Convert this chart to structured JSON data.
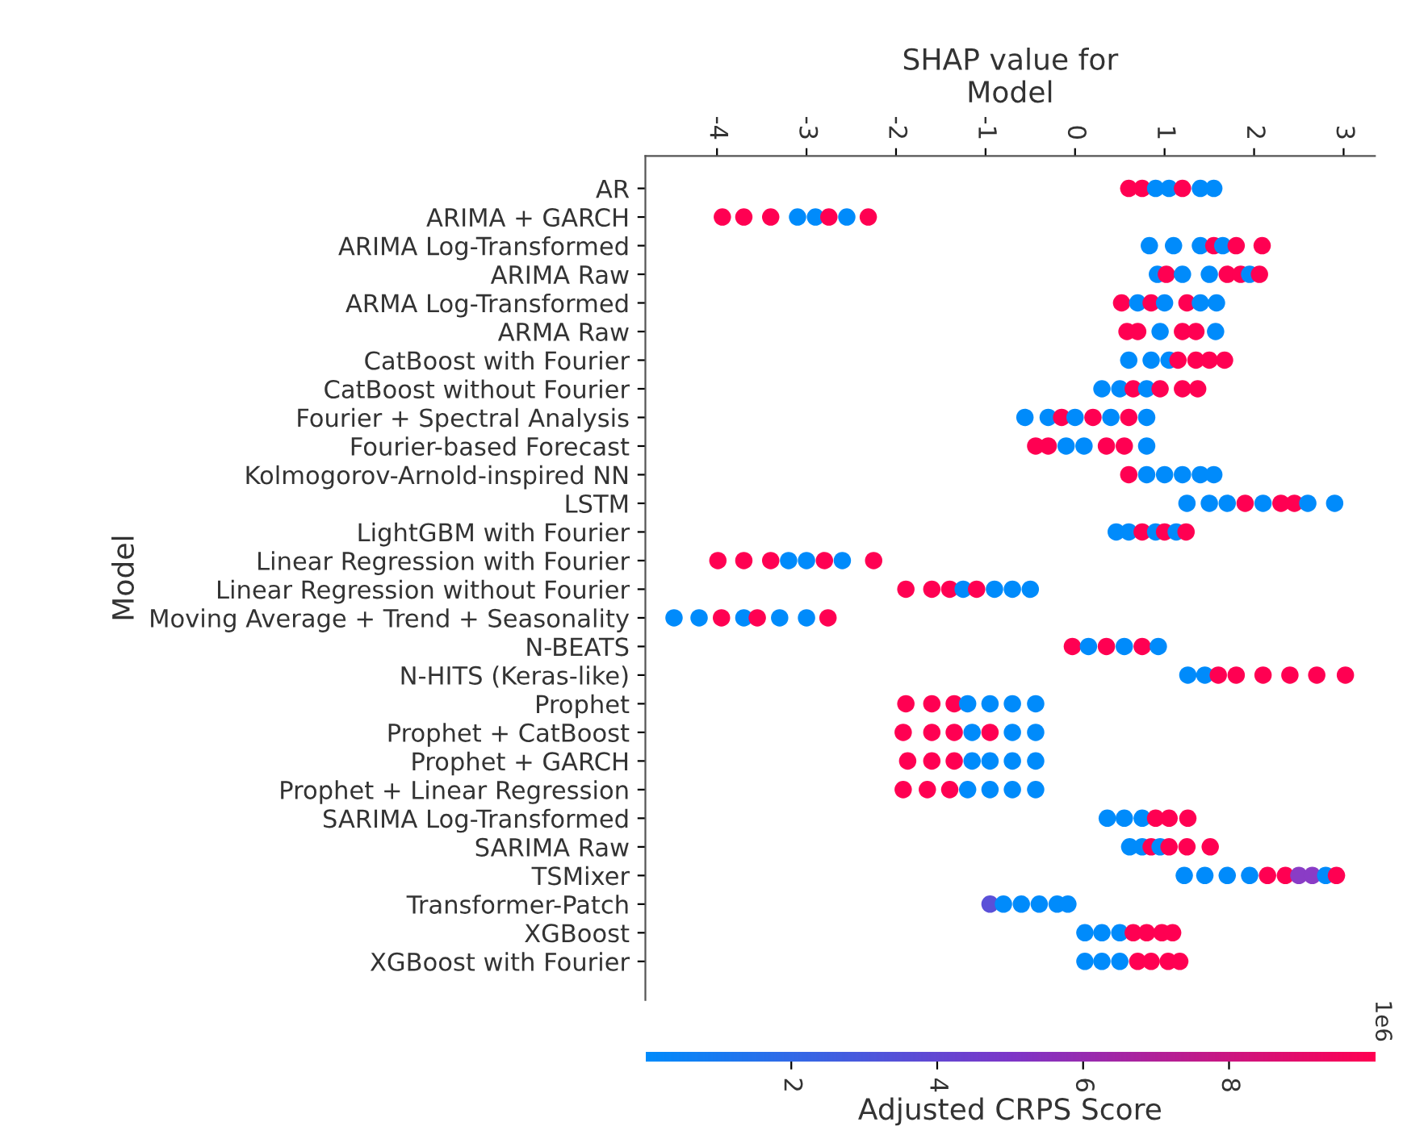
{
  "chart_data": {
    "type": "scatter",
    "orientation": "horizontal",
    "xlabel": "SHAP value for\nModel",
    "ylabel": "Model",
    "clabel": "Adjusted CRPS Score",
    "annotations": [
      "1e6"
    ],
    "categories": [
      "AR",
      "ARIMA + GARCH",
      "ARIMA Log-Transformed",
      "ARIMA Raw",
      "ARMA Log-Transformed",
      "ARMA Raw",
      "CatBoost with Fourier",
      "CatBoost without Fourier",
      "Fourier + Spectral Analysis",
      "Fourier-based Forecast",
      "Kolmogorov-Arnold-inspired NN",
      "LSTM",
      "LightGBM with Fourier",
      "Linear Regression with Fourier",
      "Linear Regression without Fourier",
      "Moving Average + Trend + Seasonality",
      "N-BEATS",
      "N-HITS (Keras-like)",
      "Prophet",
      "Prophet + CatBoost",
      "Prophet + GARCH",
      "Prophet + Linear Regression",
      "SARIMA Log-Transformed",
      "SARIMA Raw",
      "TSMixer",
      "Transformer-Patch",
      "XGBoost",
      "XGBoost with Fourier"
    ],
    "xlim": [
      -4.8,
      3.35
    ],
    "xticks": [
      -4,
      -3,
      -2,
      -1,
      0,
      1,
      2,
      3
    ],
    "clim": [
      0,
      10
    ],
    "cticks": [
      2,
      4,
      6,
      8
    ],
    "marker": "circle",
    "grid": false,
    "legend": false,
    "series": [
      {
        "x": [
          "AR",
          "AR",
          "AR",
          "AR",
          "AR",
          "AR",
          "AR"
        ],
        "values": [
          0.6,
          0.75,
          0.9,
          1.05,
          1.2,
          1.4,
          1.55
        ],
        "colors": [
          "#ff0052",
          "#ff0052",
          "#008bfb",
          "#008bfb",
          "#ff0052",
          "#008bfb",
          "#008bfb"
        ]
      },
      {
        "x": [
          "ARIMA + GARCH",
          "ARIMA + GARCH",
          "ARIMA + GARCH",
          "ARIMA + GARCH",
          "ARIMA + GARCH",
          "ARIMA + GARCH",
          "ARIMA + GARCH",
          "ARIMA + GARCH"
        ],
        "values": [
          -3.94,
          -3.7,
          -3.4,
          -3.1,
          -2.9,
          -2.75,
          -2.55,
          -2.31
        ],
        "colors": [
          "#ff0052",
          "#ff0052",
          "#ff0052",
          "#008bfb",
          "#008bfb",
          "#ff0052",
          "#008bfb",
          "#ff0052"
        ]
      },
      {
        "x": [
          "ARIMA Log-Transformed",
          "ARIMA Log-Transformed",
          "ARIMA Log-Transformed",
          "ARIMA Log-Transformed",
          "ARIMA Log-Transformed",
          "ARIMA Log-Transformed",
          "ARIMA Log-Transformed"
        ],
        "values": [
          0.83,
          1.1,
          1.4,
          1.55,
          1.65,
          1.8,
          2.09
        ],
        "colors": [
          "#008bfb",
          "#008bfb",
          "#008bfb",
          "#ff0052",
          "#008bfb",
          "#ff0052",
          "#ff0052"
        ]
      },
      {
        "x": [
          "ARIMA Raw",
          "ARIMA Raw",
          "ARIMA Raw",
          "ARIMA Raw",
          "ARIMA Raw",
          "ARIMA Raw",
          "ARIMA Raw",
          "ARIMA Raw"
        ],
        "values": [
          0.92,
          1.02,
          1.2,
          1.5,
          1.7,
          1.85,
          1.95,
          2.06
        ],
        "colors": [
          "#008bfb",
          "#ff0052",
          "#008bfb",
          "#008bfb",
          "#ff0052",
          "#ff0052",
          "#008bfb",
          "#ff0052"
        ]
      },
      {
        "x": [
          "ARMA Log-Transformed",
          "ARMA Log-Transformed",
          "ARMA Log-Transformed",
          "ARMA Log-Transformed",
          "ARMA Log-Transformed",
          "ARMA Log-Transformed",
          "ARMA Log-Transformed"
        ],
        "values": [
          0.52,
          0.7,
          0.85,
          1.0,
          1.25,
          1.4,
          1.58
        ],
        "colors": [
          "#ff0052",
          "#008bfb",
          "#ff0052",
          "#008bfb",
          "#ff0052",
          "#008bfb",
          "#008bfb"
        ]
      },
      {
        "x": [
          "ARMA Raw",
          "ARMA Raw",
          "ARMA Raw",
          "ARMA Raw",
          "ARMA Raw",
          "ARMA Raw"
        ],
        "values": [
          0.58,
          0.7,
          0.95,
          1.2,
          1.35,
          1.57
        ],
        "colors": [
          "#ff0052",
          "#ff0052",
          "#008bfb",
          "#ff0052",
          "#ff0052",
          "#008bfb"
        ]
      },
      {
        "x": [
          "CatBoost with Fourier",
          "CatBoost with Fourier",
          "CatBoost with Fourier",
          "CatBoost with Fourier",
          "CatBoost with Fourier",
          "CatBoost with Fourier",
          "CatBoost with Fourier"
        ],
        "values": [
          0.6,
          0.85,
          1.05,
          1.15,
          1.35,
          1.5,
          1.67
        ],
        "colors": [
          "#008bfb",
          "#008bfb",
          "#008bfb",
          "#ff0052",
          "#ff0052",
          "#ff0052",
          "#ff0052"
        ]
      },
      {
        "x": [
          "CatBoost without Fourier",
          "CatBoost without Fourier",
          "CatBoost without Fourier",
          "CatBoost without Fourier",
          "CatBoost without Fourier",
          "CatBoost without Fourier",
          "CatBoost without Fourier"
        ],
        "values": [
          0.3,
          0.5,
          0.65,
          0.8,
          0.95,
          1.2,
          1.37
        ],
        "colors": [
          "#008bfb",
          "#008bfb",
          "#ff0052",
          "#008bfb",
          "#ff0052",
          "#ff0052",
          "#ff0052"
        ]
      },
      {
        "x": [
          "Fourier + Spectral Analysis",
          "Fourier + Spectral Analysis",
          "Fourier + Spectral Analysis",
          "Fourier + Spectral Analysis",
          "Fourier + Spectral Analysis",
          "Fourier + Spectral Analysis",
          "Fourier + Spectral Analysis",
          "Fourier + Spectral Analysis"
        ],
        "values": [
          -0.56,
          -0.3,
          -0.15,
          0.0,
          0.2,
          0.4,
          0.6,
          0.8
        ],
        "colors": [
          "#008bfb",
          "#008bfb",
          "#ff0052",
          "#008bfb",
          "#ff0052",
          "#008bfb",
          "#ff0052",
          "#008bfb"
        ]
      },
      {
        "x": [
          "Fourier-based Forecast",
          "Fourier-based Forecast",
          "Fourier-based Forecast",
          "Fourier-based Forecast",
          "Fourier-based Forecast",
          "Fourier-based Forecast",
          "Fourier-based Forecast"
        ],
        "values": [
          -0.44,
          -0.3,
          -0.1,
          0.1,
          0.35,
          0.55,
          0.8
        ],
        "colors": [
          "#ff0052",
          "#ff0052",
          "#008bfb",
          "#008bfb",
          "#ff0052",
          "#ff0052",
          "#008bfb"
        ]
      },
      {
        "x": [
          "Kolmogorov-Arnold-inspired NN",
          "Kolmogorov-Arnold-inspired NN",
          "Kolmogorov-Arnold-inspired NN",
          "Kolmogorov-Arnold-inspired NN",
          "Kolmogorov-Arnold-inspired NN",
          "Kolmogorov-Arnold-inspired NN"
        ],
        "values": [
          0.6,
          0.8,
          1.0,
          1.2,
          1.4,
          1.55
        ],
        "colors": [
          "#ff0052",
          "#008bfb",
          "#008bfb",
          "#008bfb",
          "#008bfb",
          "#008bfb"
        ]
      },
      {
        "x": [
          "LSTM",
          "LSTM",
          "LSTM",
          "LSTM",
          "LSTM",
          "LSTM",
          "LSTM",
          "LSTM",
          "LSTM"
        ],
        "values": [
          1.25,
          1.5,
          1.7,
          1.9,
          2.1,
          2.3,
          2.45,
          2.6,
          2.9
        ],
        "colors": [
          "#008bfb",
          "#008bfb",
          "#008bfb",
          "#ff0052",
          "#008bfb",
          "#ff0052",
          "#ff0052",
          "#008bfb",
          "#008bfb"
        ]
      },
      {
        "x": [
          "LightGBM with Fourier",
          "LightGBM with Fourier",
          "LightGBM with Fourier",
          "LightGBM with Fourier",
          "LightGBM with Fourier",
          "LightGBM with Fourier",
          "LightGBM with Fourier"
        ],
        "values": [
          0.46,
          0.6,
          0.75,
          0.9,
          1.0,
          1.13,
          1.24
        ],
        "colors": [
          "#008bfb",
          "#008bfb",
          "#ff0052",
          "#008bfb",
          "#ff0052",
          "#008bfb",
          "#ff0052"
        ]
      },
      {
        "x": [
          "Linear Regression with Fourier",
          "Linear Regression with Fourier",
          "Linear Regression with Fourier",
          "Linear Regression with Fourier",
          "Linear Regression with Fourier",
          "Linear Regression with Fourier",
          "Linear Regression with Fourier",
          "Linear Regression with Fourier"
        ],
        "values": [
          -3.99,
          -3.7,
          -3.4,
          -3.2,
          -3.0,
          -2.8,
          -2.6,
          -2.25
        ],
        "colors": [
          "#ff0052",
          "#ff0052",
          "#ff0052",
          "#008bfb",
          "#008bfb",
          "#ff0052",
          "#008bfb",
          "#ff0052"
        ]
      },
      {
        "x": [
          "Linear Regression without Fourier",
          "Linear Regression without Fourier",
          "Linear Regression without Fourier",
          "Linear Regression without Fourier",
          "Linear Regression without Fourier",
          "Linear Regression without Fourier",
          "Linear Regression without Fourier",
          "Linear Regression without Fourier"
        ],
        "values": [
          -1.89,
          -1.6,
          -1.4,
          -1.25,
          -1.1,
          -0.9,
          -0.7,
          -0.5
        ],
        "colors": [
          "#ff0052",
          "#ff0052",
          "#ff0052",
          "#008bfb",
          "#ff0052",
          "#008bfb",
          "#008bfb",
          "#008bfb"
        ]
      },
      {
        "x": [
          "Moving Average + Trend + Seasonality",
          "Moving Average + Trend + Seasonality",
          "Moving Average + Trend + Seasonality",
          "Moving Average + Trend + Seasonality",
          "Moving Average + Trend + Seasonality",
          "Moving Average + Trend + Seasonality",
          "Moving Average + Trend + Seasonality",
          "Moving Average + Trend + Seasonality"
        ],
        "values": [
          -4.48,
          -4.2,
          -3.95,
          -3.7,
          -3.55,
          -3.3,
          -3.0,
          -2.76
        ],
        "colors": [
          "#008bfb",
          "#008bfb",
          "#ff0052",
          "#008bfb",
          "#ff0052",
          "#008bfb",
          "#008bfb",
          "#ff0052"
        ]
      },
      {
        "x": [
          "N-BEATS",
          "N-BEATS",
          "N-BEATS",
          "N-BEATS",
          "N-BEATS",
          "N-BEATS"
        ],
        "values": [
          -0.03,
          0.15,
          0.35,
          0.55,
          0.75,
          0.93
        ],
        "colors": [
          "#ff0052",
          "#008bfb",
          "#ff0052",
          "#008bfb",
          "#ff0052",
          "#008bfb"
        ]
      },
      {
        "x": [
          "N-HITS (Keras-like)",
          "N-HITS (Keras-like)",
          "N-HITS (Keras-like)",
          "N-HITS (Keras-like)",
          "N-HITS (Keras-like)",
          "N-HITS (Keras-like)",
          "N-HITS (Keras-like)",
          "N-HITS (Keras-like)"
        ],
        "values": [
          1.26,
          1.45,
          1.6,
          1.8,
          2.1,
          2.4,
          2.7,
          3.02
        ],
        "colors": [
          "#008bfb",
          "#008bfb",
          "#ff0052",
          "#ff0052",
          "#ff0052",
          "#ff0052",
          "#ff0052",
          "#ff0052"
        ]
      },
      {
        "x": [
          "Prophet",
          "Prophet",
          "Prophet",
          "Prophet",
          "Prophet",
          "Prophet",
          "Prophet"
        ],
        "values": [
          -1.89,
          -1.6,
          -1.35,
          -1.2,
          -0.95,
          -0.7,
          -0.44
        ],
        "colors": [
          "#ff0052",
          "#ff0052",
          "#ff0052",
          "#008bfb",
          "#008bfb",
          "#008bfb",
          "#008bfb"
        ]
      },
      {
        "x": [
          "Prophet + CatBoost",
          "Prophet + CatBoost",
          "Prophet + CatBoost",
          "Prophet + CatBoost",
          "Prophet + CatBoost",
          "Prophet + CatBoost",
          "Prophet + CatBoost"
        ],
        "values": [
          -1.92,
          -1.6,
          -1.35,
          -1.15,
          -0.95,
          -0.7,
          -0.44
        ],
        "colors": [
          "#ff0052",
          "#ff0052",
          "#ff0052",
          "#008bfb",
          "#ff0052",
          "#008bfb",
          "#008bfb"
        ]
      },
      {
        "x": [
          "Prophet + GARCH",
          "Prophet + GARCH",
          "Prophet + GARCH",
          "Prophet + GARCH",
          "Prophet + GARCH",
          "Prophet + GARCH",
          "Prophet + GARCH"
        ],
        "values": [
          -1.87,
          -1.6,
          -1.35,
          -1.15,
          -0.95,
          -0.7,
          -0.44
        ],
        "colors": [
          "#ff0052",
          "#ff0052",
          "#ff0052",
          "#008bfb",
          "#008bfb",
          "#008bfb",
          "#008bfb"
        ]
      },
      {
        "x": [
          "Prophet + Linear Regression",
          "Prophet + Linear Regression",
          "Prophet + Linear Regression",
          "Prophet + Linear Regression",
          "Prophet + Linear Regression",
          "Prophet + Linear Regression",
          "Prophet + Linear Regression"
        ],
        "values": [
          -1.92,
          -1.65,
          -1.4,
          -1.2,
          -0.95,
          -0.7,
          -0.44
        ],
        "colors": [
          "#ff0052",
          "#ff0052",
          "#ff0052",
          "#008bfb",
          "#008bfb",
          "#008bfb",
          "#008bfb"
        ]
      },
      {
        "x": [
          "SARIMA Log-Transformed",
          "SARIMA Log-Transformed",
          "SARIMA Log-Transformed",
          "SARIMA Log-Transformed",
          "SARIMA Log-Transformed",
          "SARIMA Log-Transformed"
        ],
        "values": [
          0.36,
          0.55,
          0.75,
          0.9,
          1.05,
          1.26
        ],
        "colors": [
          "#008bfb",
          "#008bfb",
          "#008bfb",
          "#ff0052",
          "#ff0052",
          "#ff0052"
        ]
      },
      {
        "x": [
          "SARIMA Raw",
          "SARIMA Raw",
          "SARIMA Raw",
          "SARIMA Raw",
          "SARIMA Raw",
          "SARIMA Raw",
          "SARIMA Raw"
        ],
        "values": [
          0.61,
          0.75,
          0.85,
          0.95,
          1.05,
          1.25,
          1.51
        ],
        "colors": [
          "#008bfb",
          "#008bfb",
          "#ff0052",
          "#008bfb",
          "#ff0052",
          "#ff0052",
          "#ff0052"
        ]
      },
      {
        "x": [
          "TSMixer",
          "TSMixer",
          "TSMixer",
          "TSMixer",
          "TSMixer",
          "TSMixer",
          "TSMixer",
          "TSMixer",
          "TSMixer",
          "TSMixer"
        ],
        "values": [
          1.22,
          1.45,
          1.7,
          1.95,
          2.15,
          2.35,
          2.5,
          2.65,
          2.8,
          2.92
        ],
        "colors": [
          "#008bfb",
          "#008bfb",
          "#008bfb",
          "#008bfb",
          "#ff0052",
          "#ff0052",
          "#8a3cc6",
          "#8a3cc6",
          "#008bfb",
          "#ff0052"
        ]
      },
      {
        "x": [
          "Transformer-Patch",
          "Transformer-Patch",
          "Transformer-Patch",
          "Transformer-Patch",
          "Transformer-Patch",
          "Transformer-Patch"
        ],
        "values": [
          -0.95,
          -0.8,
          -0.6,
          -0.4,
          -0.2,
          -0.08
        ],
        "colors": [
          "#5a50d8",
          "#008bfb",
          "#008bfb",
          "#008bfb",
          "#008bfb",
          "#008bfb"
        ]
      },
      {
        "x": [
          "XGBoost",
          "XGBoost",
          "XGBoost",
          "XGBoost",
          "XGBoost",
          "XGBoost",
          "XGBoost"
        ],
        "values": [
          0.11,
          0.3,
          0.5,
          0.65,
          0.8,
          0.97,
          1.09
        ],
        "colors": [
          "#008bfb",
          "#008bfb",
          "#008bfb",
          "#ff0052",
          "#ff0052",
          "#ff0052",
          "#ff0052"
        ]
      },
      {
        "x": [
          "XGBoost with Fourier",
          "XGBoost with Fourier",
          "XGBoost with Fourier",
          "XGBoost with Fourier",
          "XGBoost with Fourier",
          "XGBoost with Fourier",
          "XGBoost with Fourier"
        ],
        "values": [
          0.11,
          0.3,
          0.5,
          0.7,
          0.85,
          1.04,
          1.17
        ],
        "colors": [
          "#008bfb",
          "#008bfb",
          "#008bfb",
          "#ff0052",
          "#ff0052",
          "#ff0052",
          "#ff0052"
        ]
      }
    ]
  }
}
